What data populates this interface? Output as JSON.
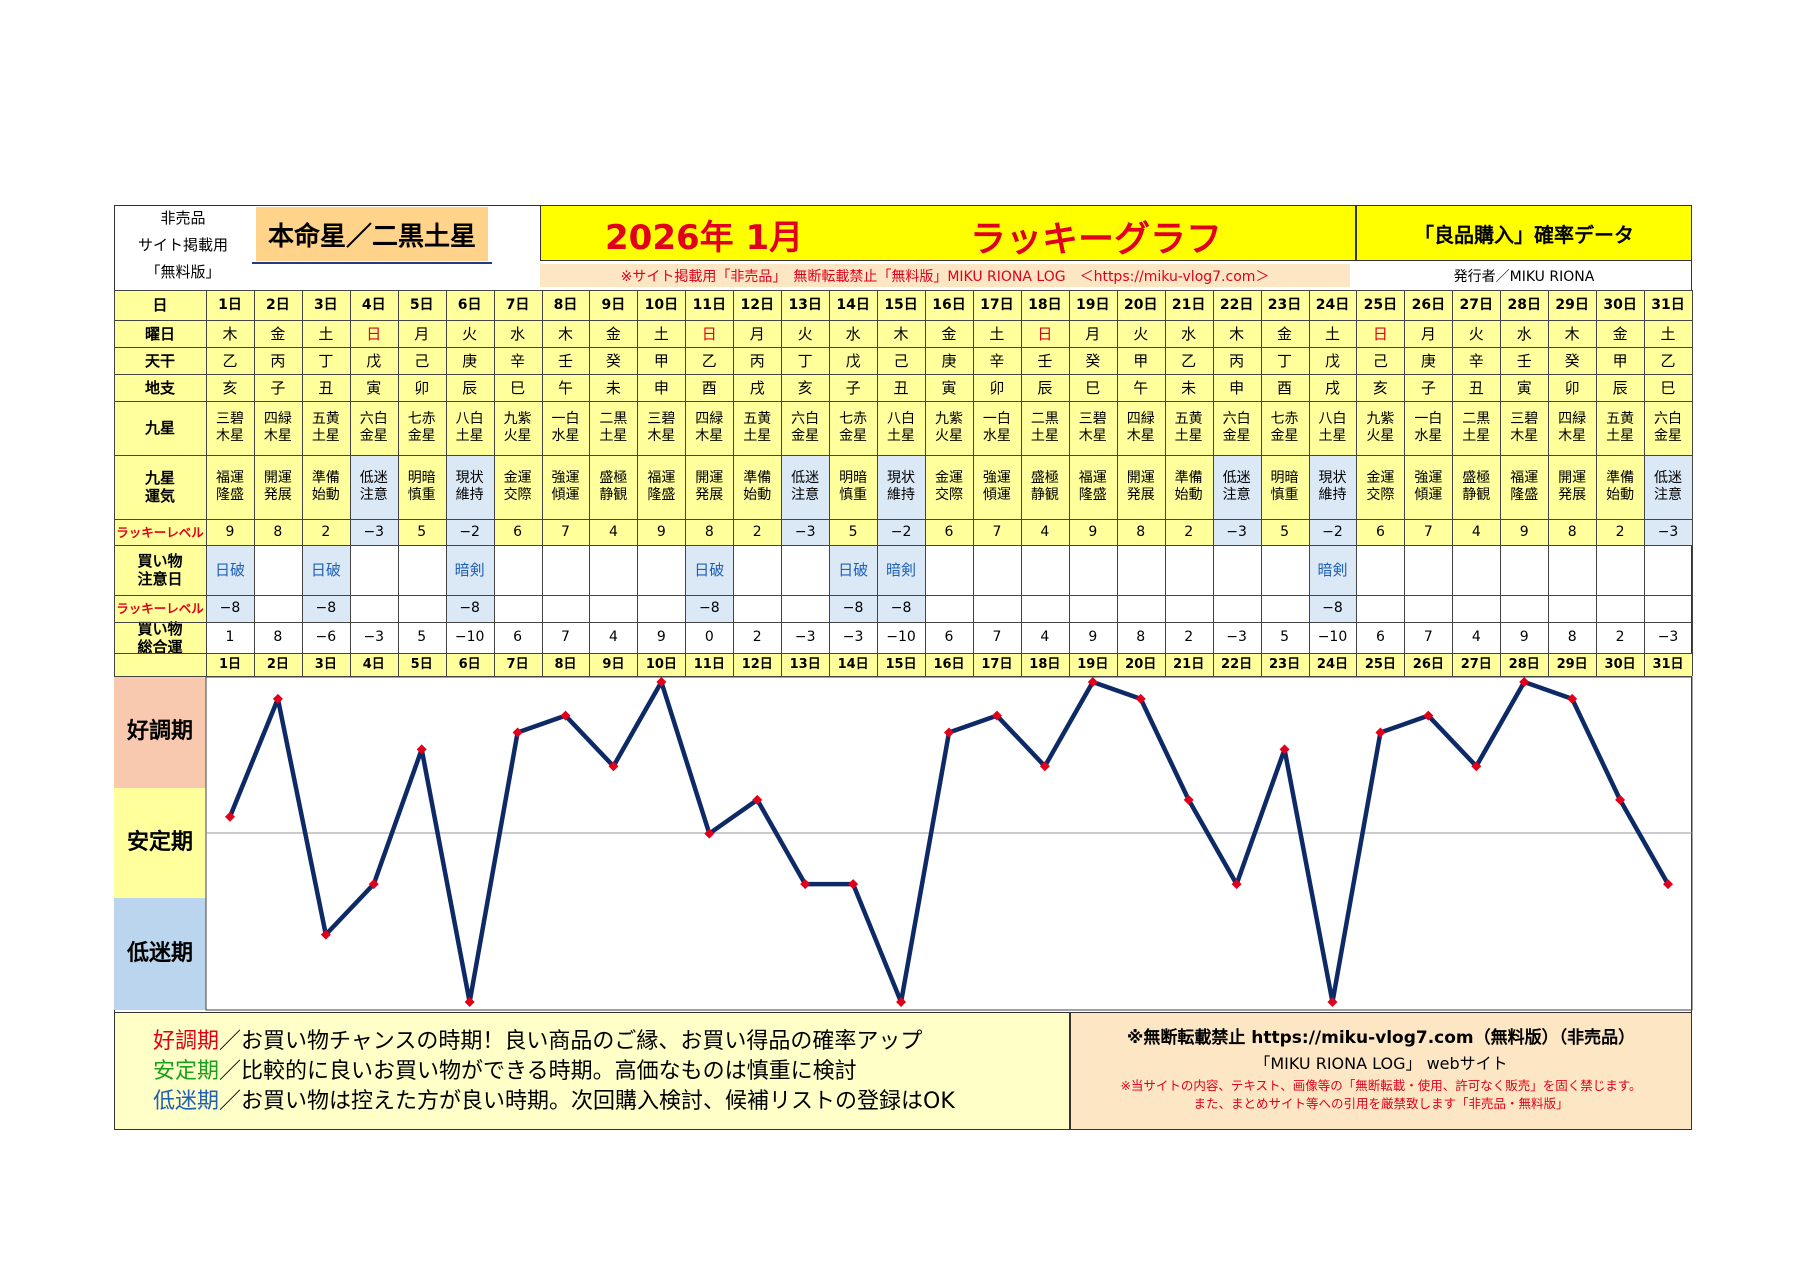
{
  "header": {
    "left_lines": [
      "非売品",
      "サイト掲載用",
      "「無料版」"
    ],
    "honmei": "本命星／二黒土星",
    "year_month": "2026年 1月",
    "lucky_graph": "ラッキーグラフ",
    "right_title": "「良品購入」確率データ",
    "notice": "※サイト掲載用「非売品」　無断転載禁止「無料版」MIKU RIONA LOG　＜https://miku-vlog7.com＞",
    "issuer": "発行者／MIKU RIONA"
  },
  "row_labels": {
    "day": "日",
    "weekday": "曜日",
    "stem": "天干",
    "branch": "地支",
    "star": [
      "九星"
    ],
    "star_luck": [
      "九星",
      "運気"
    ],
    "lucky_level": "ラッキーレベル",
    "caution": [
      "買い物",
      "注意日"
    ],
    "lucky_level2": "ラッキーレベル",
    "total": [
      "買い物",
      "総合運"
    ]
  },
  "days": [
    "1日",
    "2日",
    "3日",
    "4日",
    "5日",
    "6日",
    "7日",
    "8日",
    "9日",
    "10日",
    "11日",
    "12日",
    "13日",
    "14日",
    "15日",
    "16日",
    "17日",
    "18日",
    "19日",
    "20日",
    "21日",
    "22日",
    "23日",
    "24日",
    "25日",
    "26日",
    "27日",
    "28日",
    "29日",
    "30日",
    "31日"
  ],
  "weekdays": [
    "木",
    "金",
    "土",
    "日",
    "月",
    "火",
    "水",
    "木",
    "金",
    "土",
    "日",
    "月",
    "火",
    "水",
    "木",
    "金",
    "土",
    "日",
    "月",
    "火",
    "水",
    "木",
    "金",
    "土",
    "日",
    "月",
    "火",
    "水",
    "木",
    "金",
    "土"
  ],
  "stems": [
    "乙",
    "丙",
    "丁",
    "戊",
    "己",
    "庚",
    "辛",
    "壬",
    "癸",
    "甲",
    "乙",
    "丙",
    "丁",
    "戊",
    "己",
    "庚",
    "辛",
    "壬",
    "癸",
    "甲",
    "乙",
    "丙",
    "丁",
    "戊",
    "己",
    "庚",
    "辛",
    "壬",
    "癸",
    "甲",
    "乙"
  ],
  "branches": [
    "亥",
    "子",
    "丑",
    "寅",
    "卯",
    "辰",
    "巳",
    "午",
    "未",
    "申",
    "酉",
    "戌",
    "亥",
    "子",
    "丑",
    "寅",
    "卯",
    "辰",
    "巳",
    "午",
    "未",
    "申",
    "酉",
    "戌",
    "亥",
    "子",
    "丑",
    "寅",
    "卯",
    "辰",
    "巳"
  ],
  "stars": [
    [
      "三碧",
      "木星"
    ],
    [
      "四緑",
      "木星"
    ],
    [
      "五黄",
      "土星"
    ],
    [
      "六白",
      "金星"
    ],
    [
      "七赤",
      "金星"
    ],
    [
      "八白",
      "土星"
    ],
    [
      "九紫",
      "火星"
    ],
    [
      "一白",
      "水星"
    ],
    [
      "二黒",
      "土星"
    ],
    [
      "三碧",
      "木星"
    ],
    [
      "四緑",
      "木星"
    ],
    [
      "五黄",
      "土星"
    ],
    [
      "六白",
      "金星"
    ],
    [
      "七赤",
      "金星"
    ],
    [
      "八白",
      "土星"
    ],
    [
      "九紫",
      "火星"
    ],
    [
      "一白",
      "水星"
    ],
    [
      "二黒",
      "土星"
    ],
    [
      "三碧",
      "木星"
    ],
    [
      "四緑",
      "木星"
    ],
    [
      "五黄",
      "土星"
    ],
    [
      "六白",
      "金星"
    ],
    [
      "七赤",
      "金星"
    ],
    [
      "八白",
      "土星"
    ],
    [
      "九紫",
      "火星"
    ],
    [
      "一白",
      "水星"
    ],
    [
      "二黒",
      "土星"
    ],
    [
      "三碧",
      "木星"
    ],
    [
      "四緑",
      "木星"
    ],
    [
      "五黄",
      "土星"
    ],
    [
      "六白",
      "金星"
    ]
  ],
  "star_luck": [
    [
      "福運",
      "隆盛"
    ],
    [
      "開運",
      "発展"
    ],
    [
      "準備",
      "始動"
    ],
    [
      "低迷",
      "注意"
    ],
    [
      "明暗",
      "慎重"
    ],
    [
      "現状",
      "維持"
    ],
    [
      "金運",
      "交際"
    ],
    [
      "強運",
      "傾運"
    ],
    [
      "盛極",
      "静観"
    ],
    [
      "福運",
      "隆盛"
    ],
    [
      "開運",
      "発展"
    ],
    [
      "準備",
      "始動"
    ],
    [
      "低迷",
      "注意"
    ],
    [
      "明暗",
      "慎重"
    ],
    [
      "現状",
      "維持"
    ],
    [
      "金運",
      "交際"
    ],
    [
      "強運",
      "傾運"
    ],
    [
      "盛極",
      "静観"
    ],
    [
      "福運",
      "隆盛"
    ],
    [
      "開運",
      "発展"
    ],
    [
      "準備",
      "始動"
    ],
    [
      "低迷",
      "注意"
    ],
    [
      "明暗",
      "慎重"
    ],
    [
      "現状",
      "維持"
    ],
    [
      "金運",
      "交際"
    ],
    [
      "強運",
      "傾運"
    ],
    [
      "盛極",
      "静観"
    ],
    [
      "福運",
      "隆盛"
    ],
    [
      "開運",
      "発展"
    ],
    [
      "準備",
      "始動"
    ],
    [
      "低迷",
      "注意"
    ]
  ],
  "lucky_level": [
    "9",
    "8",
    "2",
    "−3",
    "5",
    "−2",
    "6",
    "7",
    "4",
    "9",
    "8",
    "2",
    "−3",
    "5",
    "−2",
    "6",
    "7",
    "4",
    "9",
    "8",
    "2",
    "−3",
    "5",
    "−2",
    "6",
    "7",
    "4",
    "9",
    "8",
    "2",
    "−3"
  ],
  "caution": [
    "日破",
    "",
    "日破",
    "",
    "",
    "暗剣",
    "",
    "",
    "",
    "",
    "日破",
    "",
    "",
    "日破",
    "暗剣",
    "",
    "",
    "",
    "",
    "",
    "",
    "",
    "",
    "暗剣",
    "",
    "",
    "",
    "",
    "",
    "",
    ""
  ],
  "caution_level": [
    "−8",
    "",
    "−8",
    "",
    "",
    "−8",
    "",
    "",
    "",
    "",
    "−8",
    "",
    "",
    "−8",
    "−8",
    "",
    "",
    "",
    "",
    "",
    "",
    "",
    "",
    "−8",
    "",
    "",
    "",
    "",
    "",
    "",
    ""
  ],
  "total": [
    "1",
    "8",
    "−6",
    "−3",
    "5",
    "−10",
    "6",
    "7",
    "4",
    "9",
    "0",
    "2",
    "−3",
    "−3",
    "−10",
    "6",
    "7",
    "4",
    "9",
    "8",
    "2",
    "−3",
    "5",
    "−10",
    "6",
    "7",
    "4",
    "9",
    "8",
    "2",
    "−3"
  ],
  "colors": {
    "yellow": "#ffff9c",
    "bright_yellow": "#ffff00",
    "orange": "#fde6c4",
    "honmei": "#ffd48a",
    "good": "#f8c9ae",
    "stable": "#ffff9c",
    "low": "#bcd5ee",
    "low_cell": "#dbe8f6",
    "line": "#0d2a66",
    "marker": "#e0001b",
    "sunday": "#e0001b"
  },
  "zones": {
    "good": "好調期",
    "stable": "安定期",
    "low": "低迷期"
  },
  "chart_data": {
    "type": "line",
    "x": [
      "1日",
      "2日",
      "3日",
      "4日",
      "5日",
      "6日",
      "7日",
      "8日",
      "9日",
      "10日",
      "11日",
      "12日",
      "13日",
      "14日",
      "15日",
      "16日",
      "17日",
      "18日",
      "19日",
      "20日",
      "21日",
      "22日",
      "23日",
      "24日",
      "25日",
      "26日",
      "27日",
      "28日",
      "29日",
      "30日",
      "31日"
    ],
    "series": [
      {
        "values": [
          1,
          8,
          -6,
          -3,
          5,
          -10,
          6,
          7,
          4,
          9,
          0,
          2,
          -3,
          -3,
          -10,
          6,
          7,
          4,
          9,
          8,
          2,
          -3,
          5,
          -10,
          6,
          7,
          4,
          9,
          8,
          2,
          -3
        ]
      }
    ],
    "ylim": [
      -10,
      9
    ],
    "grid": false,
    "zones": [
      "好調期",
      "安定期",
      "低迷期"
    ]
  },
  "legend": {
    "good_head": "好調期",
    "good_text": "／お買い物チャンスの時期！良い商品のご縁、お買い得品の確率アップ",
    "stable_head": "安定期",
    "stable_text": "／比較的に良いお買い物ができる時期。高価なものは慎重に検討",
    "low_head": "低迷期",
    "low_text": "／お買い物は控えた方が良い時期。次回購入検討、候補リストの登録はOK"
  },
  "footer": {
    "line1": "※無断転載禁止 https://miku-vlog7.com（無料版）（非売品）",
    "line2": "「MIKU RIONA LOG」 webサイト",
    "line3": "※当サイトの内容、テキスト、画像等の「無断転載・使用、許可なく販売」を固く禁じます。",
    "line4": "また、まとめサイト等への引用を厳禁致します「非売品・無料版」"
  }
}
